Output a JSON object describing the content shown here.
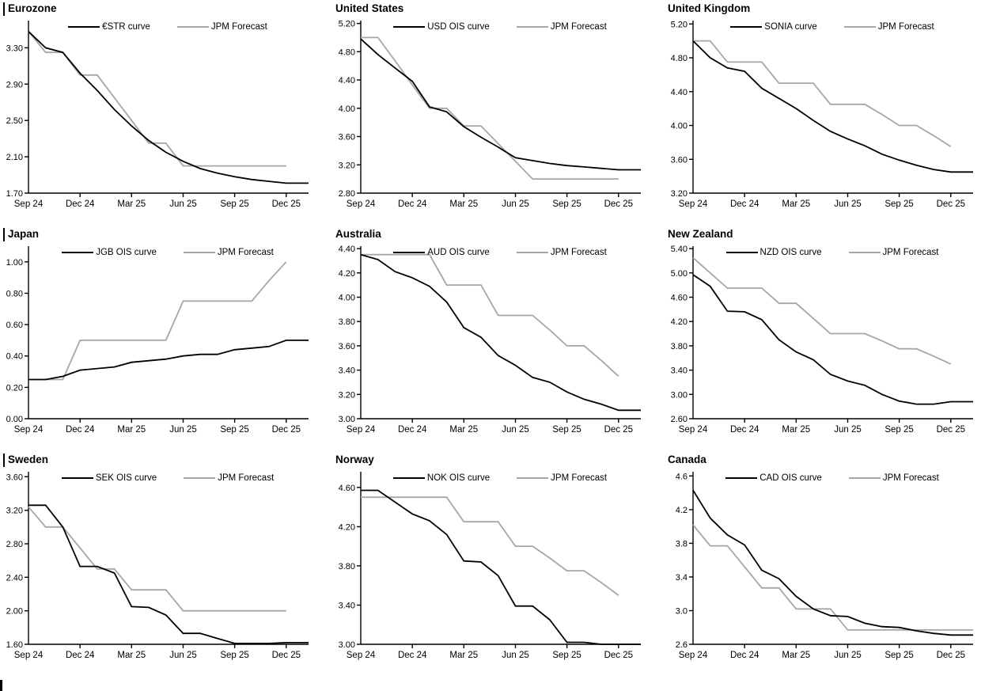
{
  "colors": {
    "market": "#000000",
    "forecast": "#a6a6a6",
    "axis": "#000000"
  },
  "x_tick_labels": [
    "Sep 24",
    "Dec 24",
    "Mar 25",
    "Jun 25",
    "Sep 25",
    "Dec 25"
  ],
  "months": [
    "Sep 24",
    "Oct 24",
    "Nov 24",
    "Dec 24",
    "Jan 25",
    "Feb 25",
    "Mar 25",
    "Apr 25",
    "May 25",
    "Jun 25",
    "Jul 25",
    "Aug 25",
    "Sep 25",
    "Oct 25",
    "Nov 25",
    "Dec 25"
  ],
  "legend_forecast_label": "JPM Forecast",
  "chart_data": [
    {
      "type": "line",
      "title": "Eurozone",
      "ylim": [
        1.7,
        3.6
      ],
      "yticks": [
        "1.70",
        "2.10",
        "2.50",
        "2.90",
        "3.30"
      ],
      "legend_position": "top",
      "grid": false,
      "series": [
        {
          "name": "€STR curve",
          "color": "#000000",
          "extend": true,
          "values": [
            3.48,
            3.3,
            3.25,
            3.02,
            2.83,
            2.62,
            2.44,
            2.28,
            2.15,
            2.05,
            1.97,
            1.92,
            1.88,
            1.85,
            1.83,
            1.81
          ]
        },
        {
          "name": "JPM Forecast",
          "color": "#a6a6a6",
          "extend": false,
          "values": [
            3.48,
            3.25,
            3.25,
            3.0,
            3.0,
            2.75,
            2.5,
            2.25,
            2.25,
            2.0,
            2.0,
            2.0,
            2.0,
            2.0,
            2.0,
            2.0
          ]
        }
      ]
    },
    {
      "type": "line",
      "title": "United States",
      "ylim": [
        2.8,
        5.24
      ],
      "yticks": [
        "2.80",
        "3.20",
        "3.60",
        "4.00",
        "4.40",
        "4.80",
        "5.20"
      ],
      "legend_position": "top",
      "grid": false,
      "series": [
        {
          "name": "USD OIS curve",
          "color": "#000000",
          "extend": true,
          "values": [
            4.98,
            4.76,
            4.57,
            4.38,
            4.02,
            3.95,
            3.74,
            3.59,
            3.45,
            3.3,
            3.26,
            3.22,
            3.19,
            3.17,
            3.15,
            3.13
          ]
        },
        {
          "name": "JPM Forecast",
          "color": "#a6a6a6",
          "extend": false,
          "values": [
            5.0,
            5.0,
            4.67,
            4.33,
            4.0,
            4.0,
            3.75,
            3.75,
            3.5,
            3.25,
            3.0,
            3.0,
            3.0,
            3.0,
            3.0,
            3.0
          ]
        }
      ]
    },
    {
      "type": "line",
      "title": "United Kingdom",
      "ylim": [
        3.2,
        5.24
      ],
      "yticks": [
        "3.20",
        "3.60",
        "4.00",
        "4.40",
        "4.80",
        "5.20"
      ],
      "legend_position": "top",
      "grid": false,
      "series": [
        {
          "name": "SONIA curve",
          "color": "#000000",
          "extend": true,
          "values": [
            5.0,
            4.8,
            4.68,
            4.64,
            4.44,
            4.32,
            4.2,
            4.06,
            3.93,
            3.84,
            3.76,
            3.66,
            3.59,
            3.53,
            3.48,
            3.45
          ]
        },
        {
          "name": "JPM Forecast",
          "color": "#a6a6a6",
          "extend": false,
          "values": [
            5.0,
            5.0,
            4.75,
            4.75,
            4.75,
            4.5,
            4.5,
            4.5,
            4.25,
            4.25,
            4.25,
            4.13,
            4.0,
            4.0,
            3.88,
            3.75
          ]
        }
      ]
    },
    {
      "type": "line",
      "title": "Japan",
      "ylim": [
        0.0,
        1.1
      ],
      "yticks": [
        "0.00",
        "0.20",
        "0.40",
        "0.60",
        "0.80",
        "1.00"
      ],
      "legend_position": "top",
      "grid": false,
      "series": [
        {
          "name": "JGB OIS curve",
          "color": "#000000",
          "extend": true,
          "values": [
            0.25,
            0.25,
            0.27,
            0.31,
            0.32,
            0.33,
            0.36,
            0.37,
            0.38,
            0.4,
            0.41,
            0.41,
            0.44,
            0.45,
            0.46,
            0.5
          ]
        },
        {
          "name": "JPM Forecast",
          "color": "#a6a6a6",
          "extend": false,
          "values": [
            0.25,
            0.25,
            0.25,
            0.5,
            0.5,
            0.5,
            0.5,
            0.5,
            0.5,
            0.75,
            0.75,
            0.75,
            0.75,
            0.75,
            0.88,
            1.0
          ]
        }
      ]
    },
    {
      "type": "line",
      "title": "Australia",
      "ylim": [
        3.0,
        4.42
      ],
      "yticks": [
        "3.00",
        "3.20",
        "3.40",
        "3.60",
        "3.80",
        "4.00",
        "4.20",
        "4.40"
      ],
      "legend_position": "top",
      "grid": false,
      "series": [
        {
          "name": "AUD OIS curve",
          "color": "#000000",
          "extend": true,
          "values": [
            4.35,
            4.31,
            4.21,
            4.16,
            4.09,
            3.96,
            3.75,
            3.67,
            3.52,
            3.44,
            3.34,
            3.3,
            3.22,
            3.16,
            3.12,
            3.07
          ]
        },
        {
          "name": "JPM Forecast",
          "color": "#a6a6a6",
          "extend": false,
          "values": [
            4.35,
            4.35,
            4.35,
            4.35,
            4.35,
            4.1,
            4.1,
            4.1,
            3.85,
            3.85,
            3.85,
            3.73,
            3.6,
            3.6,
            3.48,
            3.35
          ]
        }
      ]
    },
    {
      "type": "line",
      "title": "New Zealand",
      "ylim": [
        2.6,
        5.44
      ],
      "yticks": [
        "2.60",
        "3.00",
        "3.40",
        "3.80",
        "4.20",
        "4.60",
        "5.00",
        "5.40"
      ],
      "legend_position": "top",
      "grid": false,
      "series": [
        {
          "name": "NZD OIS curve",
          "color": "#000000",
          "extend": true,
          "values": [
            4.97,
            4.78,
            4.37,
            4.36,
            4.23,
            3.9,
            3.7,
            3.57,
            3.33,
            3.22,
            3.15,
            3.0,
            2.89,
            2.84,
            2.84,
            2.88
          ]
        },
        {
          "name": "JPM Forecast",
          "color": "#a6a6a6",
          "extend": false,
          "values": [
            5.25,
            5.0,
            4.75,
            4.75,
            4.75,
            4.5,
            4.5,
            4.25,
            4.0,
            4.0,
            4.0,
            3.88,
            3.75,
            3.75,
            3.63,
            3.5
          ]
        }
      ]
    },
    {
      "type": "line",
      "title": "Sweden",
      "ylim": [
        1.6,
        3.66
      ],
      "yticks": [
        "1.60",
        "2.00",
        "2.40",
        "2.80",
        "3.20",
        "3.60"
      ],
      "legend_position": "top",
      "grid": false,
      "series": [
        {
          "name": "SEK OIS curve",
          "color": "#000000",
          "extend": true,
          "values": [
            3.26,
            3.26,
            3.0,
            2.53,
            2.53,
            2.45,
            2.05,
            2.04,
            1.95,
            1.73,
            1.73,
            1.67,
            1.61,
            1.61,
            1.61,
            1.62
          ]
        },
        {
          "name": "JPM Forecast",
          "color": "#a6a6a6",
          "extend": false,
          "values": [
            3.24,
            3.0,
            3.0,
            2.75,
            2.5,
            2.5,
            2.25,
            2.25,
            2.25,
            2.0,
            2.0,
            2.0,
            2.0,
            2.0,
            2.0,
            2.0
          ]
        }
      ]
    },
    {
      "type": "line",
      "title": "Norway",
      "ylim": [
        3.0,
        4.76
      ],
      "yticks": [
        "3.00",
        "3.40",
        "3.80",
        "4.20",
        "4.60"
      ],
      "legend_position": "top",
      "grid": false,
      "series": [
        {
          "name": "NOK OIS curve",
          "color": "#000000",
          "extend": true,
          "values": [
            4.57,
            4.57,
            4.45,
            4.33,
            4.26,
            4.12,
            3.85,
            3.84,
            3.7,
            3.39,
            3.39,
            3.25,
            3.02,
            3.02,
            3.0,
            3.0
          ]
        },
        {
          "name": "JPM Forecast",
          "color": "#a6a6a6",
          "extend": false,
          "values": [
            4.5,
            4.5,
            4.5,
            4.5,
            4.5,
            4.5,
            4.25,
            4.25,
            4.25,
            4.0,
            4.0,
            3.88,
            3.75,
            3.75,
            3.63,
            3.5
          ]
        }
      ]
    },
    {
      "type": "line",
      "title": "Canada",
      "ylim": [
        2.6,
        4.65
      ],
      "yticks": [
        "2.6",
        "3.0",
        "3.4",
        "3.8",
        "4.2",
        "4.6"
      ],
      "legend_position": "top",
      "grid": false,
      "series": [
        {
          "name": "CAD OIS curve",
          "color": "#000000",
          "extend": true,
          "values": [
            4.43,
            4.1,
            3.9,
            3.78,
            3.48,
            3.38,
            3.17,
            3.02,
            2.94,
            2.93,
            2.85,
            2.81,
            2.8,
            2.76,
            2.73,
            2.71
          ]
        },
        {
          "name": "JPM Forecast",
          "color": "#a6a6a6",
          "extend": true,
          "values": [
            4.02,
            3.77,
            3.77,
            3.52,
            3.27,
            3.27,
            3.02,
            3.02,
            3.02,
            2.77,
            2.77,
            2.77,
            2.77,
            2.77,
            2.77,
            2.77
          ]
        }
      ]
    }
  ]
}
